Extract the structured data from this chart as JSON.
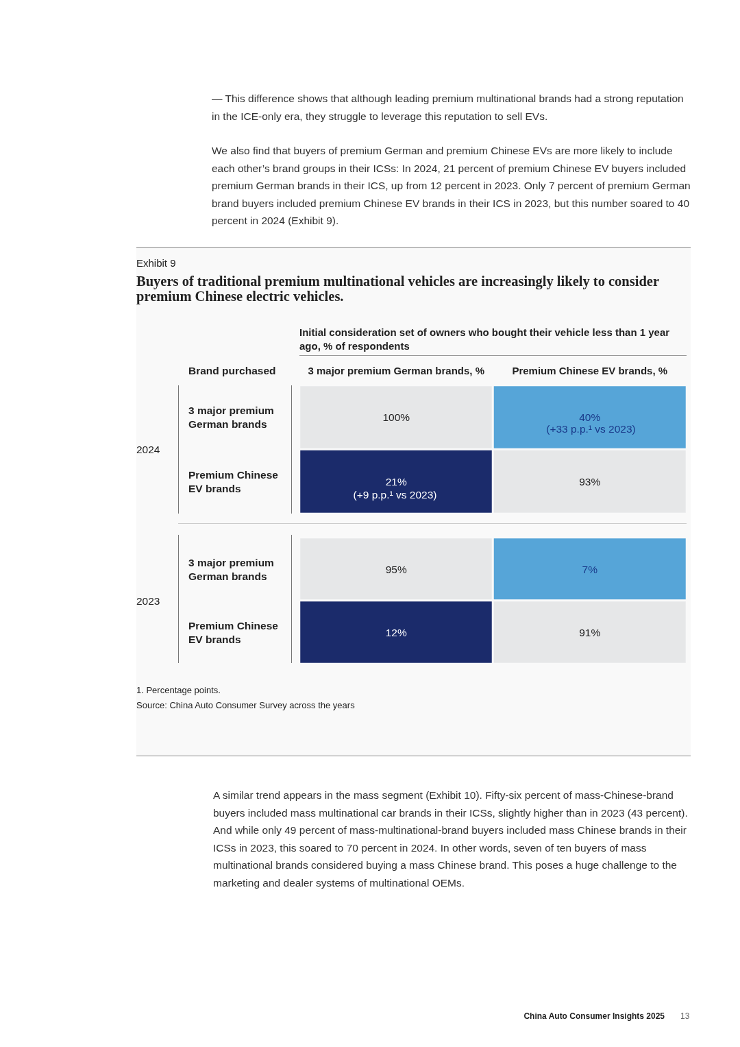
{
  "chart_data": [
    {
      "type": "heatmap",
      "subtitle": "Exhibit 9",
      "title": "Buyers of traditional premium multinational vehicles are increasingly likely to consider premium Chinese electric vehicles.",
      "xlabel": "Initial consideration set of owners who bought their vehicle less than 1 year ago, % of respondents",
      "ylabel": "2024",
      "categories": [
        "3 major premium German brands, %",
        "Premium Chinese EV brands, %"
      ],
      "y_categories": [
        "3 major premium German brands",
        "Premium Chinese EV brands"
      ],
      "cells": [
        [
          100,
          40
        ],
        [
          21,
          93
        ]
      ],
      "cell_labels": [
        [
          "100%",
          "40%"
        ],
        [
          "21%",
          "93%"
        ]
      ],
      "colors": [
        [
          "#e6e7e8",
          "#56a5d8"
        ],
        [
          "#1b2b6b",
          "#e6e7e8"
        ]
      ],
      "annotations": [
        "— This difference shows that although leading premium multinational brands had a strong reputation in the ICE-only era, they struggle to leverage this reputation to sell EVs.",
        "We also find that buyers of premium German and premium Chinese EVs are more likely to include each other’s brand groups in their ICSs: In 2024, 21 percent of premium Chinese EV buyers included premium German brands in their ICS, up from 12 percent in 2023. Only 7 percent of premium German brand buyers included premium Chinese EV brands in their ICS in 2023, but this number soared to 40 percent in 2024 (Exhibit 9).",
        "Brand purchased",
        "(+33 p.p.¹ vs 2023)",
        "(+9 p.p.¹ vs 2023)"
      ]
    },
    {
      "type": "heatmap",
      "ylabel": "2023",
      "categories": [
        null,
        null
      ],
      "y_categories": [
        "3 major premium German brands",
        "Premium Chinese EV brands"
      ],
      "cells": [
        [
          95,
          7
        ],
        [
          12,
          91
        ]
      ],
      "cell_labels": [
        [
          "95%",
          "7%"
        ],
        [
          "12%",
          "91%"
        ]
      ],
      "colors": [
        [
          "#e6e7e8",
          "#56a5d8"
        ],
        [
          "#1b2b6b",
          "#e6e7e8"
        ]
      ],
      "annotations": [
        "1. Percentage points.",
        "Source: China Auto Consumer Survey across the years",
        "A similar trend appears in the mass segment (Exhibit 10). Fifty-six percent of mass-Chinese-brand buyers included mass multinational car brands in their ICSs, slightly higher than in 2023 (43 percent). And while only 49 percent of mass-multinational-brand buyers included mass Chinese brands in their ICSs in 2023, this soared to 70 percent in 2024. In other words, seven of ten buyers of mass multinational brands considered buying a mass Chinese brand. This poses a huge challenge to the marketing and dealer systems of multinational OEMs.",
        "China Auto Consumer Insights 2025",
        "13"
      ]
    }
  ]
}
